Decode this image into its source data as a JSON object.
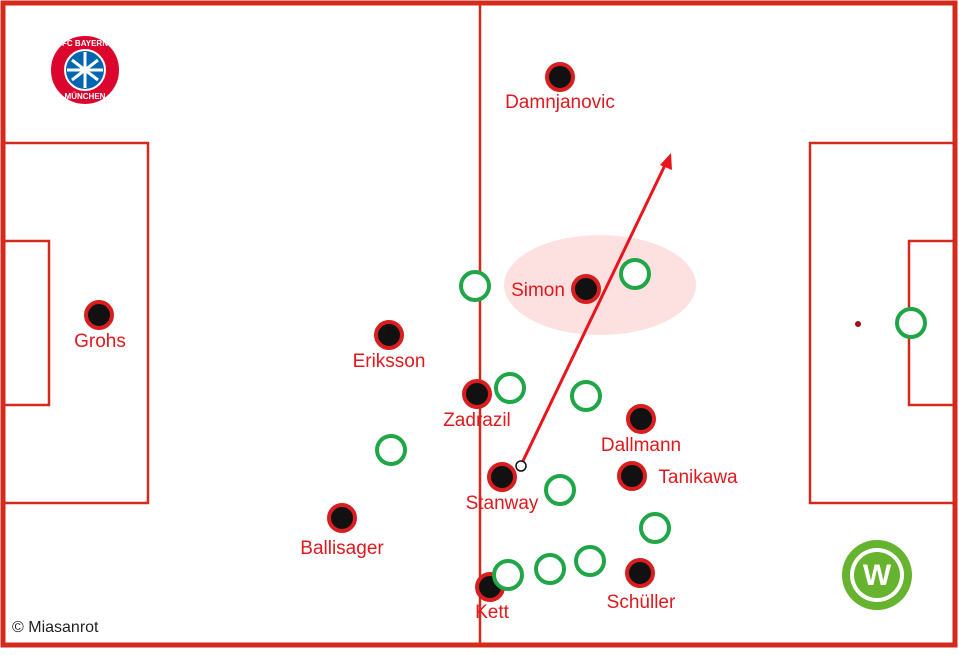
{
  "players": [
    {
      "label": "Damnjanovic"
    },
    {
      "label": "Simon"
    },
    {
      "label": "Grohs"
    },
    {
      "label": "Eriksson"
    },
    {
      "label": "Zadrazil"
    },
    {
      "label": "Dallmann"
    },
    {
      "label": "Tanikawa"
    },
    {
      "label": "Stanway"
    },
    {
      "label": "Ballisager"
    },
    {
      "label": "Kett"
    },
    {
      "label": "Schüller"
    }
  ],
  "logos": {
    "home_top": "FC BAYERN",
    "home_bottom": "MÜNCHEN",
    "away": "W"
  },
  "credit": "© Miasanrot"
}
